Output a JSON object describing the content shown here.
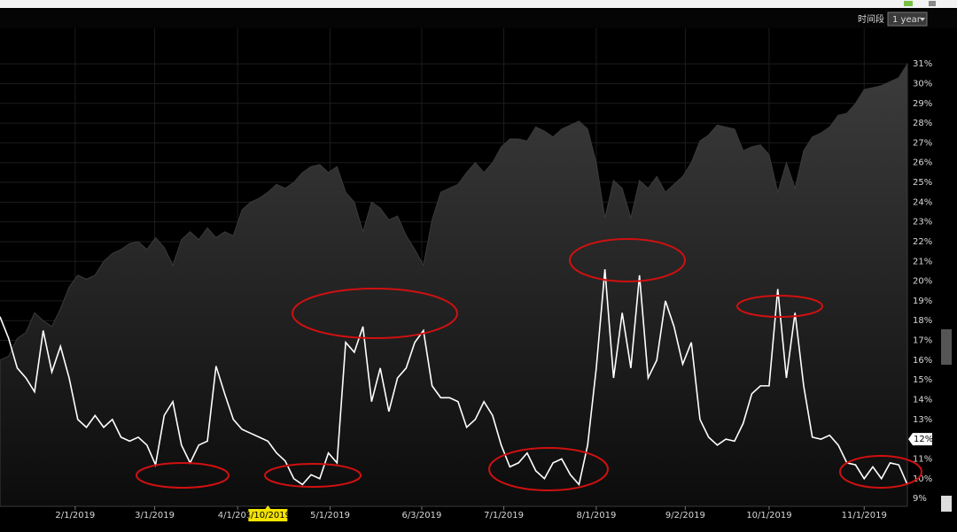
{
  "chart_data": {
    "type": "line",
    "period_label": "时间段",
    "period_options": [
      "1 year"
    ],
    "crosshair_x": {
      "value": 31,
      "label": "4/10/2019"
    },
    "current_marker": {
      "value": 12,
      "label": "12%"
    },
    "xlim": [
      0,
      105
    ],
    "xticks": [
      {
        "value": 8.7,
        "label": "2/1/2019"
      },
      {
        "value": 17.9,
        "label": "3/1/2019"
      },
      {
        "value": 27.5,
        "label": "4/1/2019"
      },
      {
        "value": 38.2,
        "label": "5/1/2019"
      },
      {
        "value": 48.8,
        "label": "6/3/2019"
      },
      {
        "value": 58.3,
        "label": "7/1/2019"
      },
      {
        "value": 69.0,
        "label": "8/1/2019"
      },
      {
        "value": 79.3,
        "label": "9/2/2019"
      },
      {
        "value": 89.0,
        "label": "10/1/2019"
      },
      {
        "value": 100,
        "label": "11/1/2019"
      }
    ],
    "ylim": [
      8.6,
      32.8
    ],
    "yticks": [
      {
        "value": 9,
        "label": "9%"
      },
      {
        "value": 10,
        "label": "10%"
      },
      {
        "value": 11,
        "label": "11%"
      },
      {
        "value": 12,
        "label": "12%"
      },
      {
        "value": 13,
        "label": "13%"
      },
      {
        "value": 14,
        "label": "14%"
      },
      {
        "value": 15,
        "label": "15%"
      },
      {
        "value": 16,
        "label": "16%"
      },
      {
        "value": 17,
        "label": "17%"
      },
      {
        "value": 18,
        "label": "18%"
      },
      {
        "value": 19,
        "label": "19%"
      },
      {
        "value": 20,
        "label": "20%"
      },
      {
        "value": 21,
        "label": "21%"
      },
      {
        "value": 22,
        "label": "22%"
      },
      {
        "value": 23,
        "label": "23%"
      },
      {
        "value": 24,
        "label": "24%"
      },
      {
        "value": 25,
        "label": "25%"
      },
      {
        "value": 26,
        "label": "26%"
      },
      {
        "value": 27,
        "label": "27%"
      },
      {
        "value": 28,
        "label": "28%"
      },
      {
        "value": 29,
        "label": "29%"
      },
      {
        "value": 30,
        "label": "30%"
      },
      {
        "value": 31,
        "label": "31%"
      }
    ],
    "grid": true,
    "series": [
      {
        "kind": "line",
        "color": "#ffffff",
        "values": [
          18.2,
          17.1,
          15.6,
          15.1,
          14.4,
          17.5,
          15.4,
          16.7,
          15.1,
          13.0,
          12.6,
          13.2,
          12.6,
          13.0,
          12.1,
          11.9,
          12.1,
          11.7,
          10.7,
          13.2,
          13.9,
          11.7,
          10.8,
          11.7,
          11.9,
          15.7,
          14.3,
          13.0,
          12.5,
          12.3,
          12.1,
          11.9,
          11.3,
          10.9,
          10.0,
          9.7,
          10.2,
          10.0,
          11.3,
          10.8,
          16.9,
          16.4,
          17.7,
          13.9,
          15.6,
          13.4,
          15.1,
          15.6,
          16.9,
          17.5,
          14.7,
          14.1,
          14.1,
          13.9,
          12.6,
          13.0,
          13.9,
          13.2,
          11.7,
          10.6,
          10.8,
          11.3,
          10.4,
          10.0,
          10.8,
          11.0,
          10.2,
          9.7,
          11.7,
          15.6,
          20.6,
          15.1,
          18.4,
          15.6,
          20.3,
          15.1,
          16.0,
          19.0,
          17.7,
          15.8,
          16.9,
          13.0,
          12.1,
          11.7,
          12.0,
          11.9,
          12.8,
          14.3,
          14.7,
          14.7,
          19.6,
          15.1,
          18.4,
          14.7,
          12.1,
          12.0,
          12.2,
          11.7,
          10.8,
          10.7,
          10.0,
          10.6,
          10.0,
          10.8,
          10.7,
          9.7
        ]
      },
      {
        "kind": "area",
        "color": "#3a3a3a",
        "values": [
          16.0,
          16.2,
          17.1,
          17.4,
          18.4,
          18.0,
          17.7,
          18.6,
          19.7,
          20.3,
          20.1,
          20.3,
          21.0,
          21.4,
          21.6,
          21.9,
          22.0,
          21.6,
          22.2,
          21.7,
          20.8,
          22.1,
          22.5,
          22.1,
          22.7,
          22.2,
          22.5,
          22.3,
          23.6,
          24.0,
          24.2,
          24.5,
          24.9,
          24.7,
          25.0,
          25.5,
          25.8,
          25.9,
          25.5,
          25.8,
          24.5,
          24.0,
          22.5,
          24.0,
          23.7,
          23.1,
          23.3,
          22.3,
          21.6,
          20.8,
          23.1,
          24.5,
          24.7,
          24.9,
          25.5,
          26.0,
          25.5,
          26.0,
          26.8,
          27.2,
          27.2,
          27.1,
          27.8,
          27.6,
          27.3,
          27.7,
          27.9,
          28.1,
          27.7,
          26.0,
          23.2,
          25.1,
          24.7,
          23.2,
          25.1,
          24.7,
          25.3,
          24.5,
          24.9,
          25.3,
          26.0,
          27.1,
          27.4,
          27.9,
          27.8,
          27.7,
          26.6,
          26.8,
          26.9,
          26.4,
          24.5,
          26.0,
          24.7,
          26.6,
          27.3,
          27.5,
          27.8,
          28.4,
          28.5,
          29.0,
          29.7,
          29.8,
          29.9,
          30.1,
          30.3,
          31.0
        ]
      }
    ]
  }
}
